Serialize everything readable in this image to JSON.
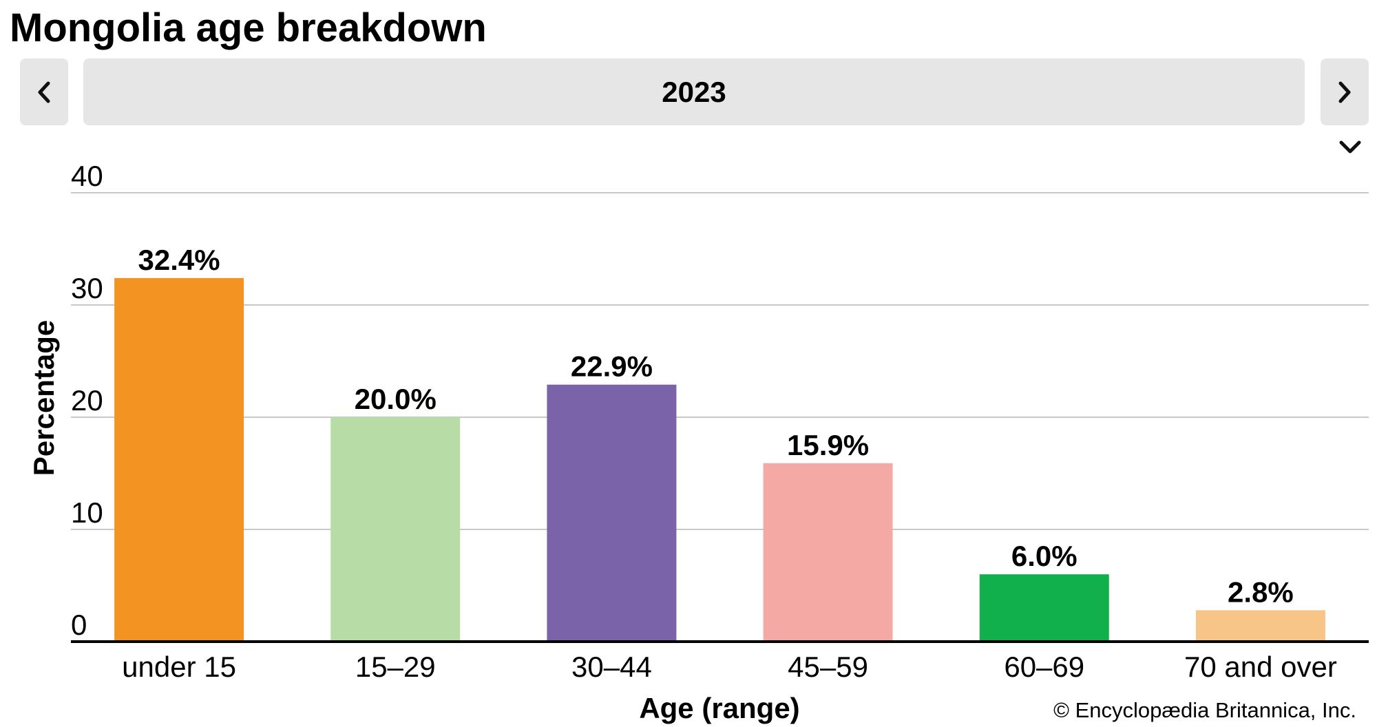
{
  "header": {
    "title": "Mongolia age breakdown"
  },
  "selector": {
    "year": "2023",
    "prev_icon": "chevron-left-icon",
    "next_icon": "chevron-right-icon",
    "dropdown_icon": "chevron-down-icon"
  },
  "chart_data": {
    "type": "bar",
    "title": "Mongolia age breakdown",
    "xlabel": "Age (range)",
    "ylabel": "Percentage",
    "categories": [
      "under 15",
      "15–29",
      "30–44",
      "45–59",
      "60–69",
      "70 and over"
    ],
    "values": [
      32.4,
      20.0,
      22.9,
      15.9,
      6.0,
      2.8
    ],
    "value_labels": [
      "32.4%",
      "20.0%",
      "22.9%",
      "15.9%",
      "6.0%",
      "2.8%"
    ],
    "colors": [
      "#f39322",
      "#b8dca6",
      "#7a63a9",
      "#f5a9a5",
      "#12b04d",
      "#f7c587"
    ],
    "ylim": [
      0,
      40
    ],
    "yticks": [
      0,
      10,
      20,
      30,
      40
    ],
    "grid": true,
    "legend": "none"
  },
  "footer": {
    "credit": "© Encyclopædia Britannica, Inc."
  }
}
